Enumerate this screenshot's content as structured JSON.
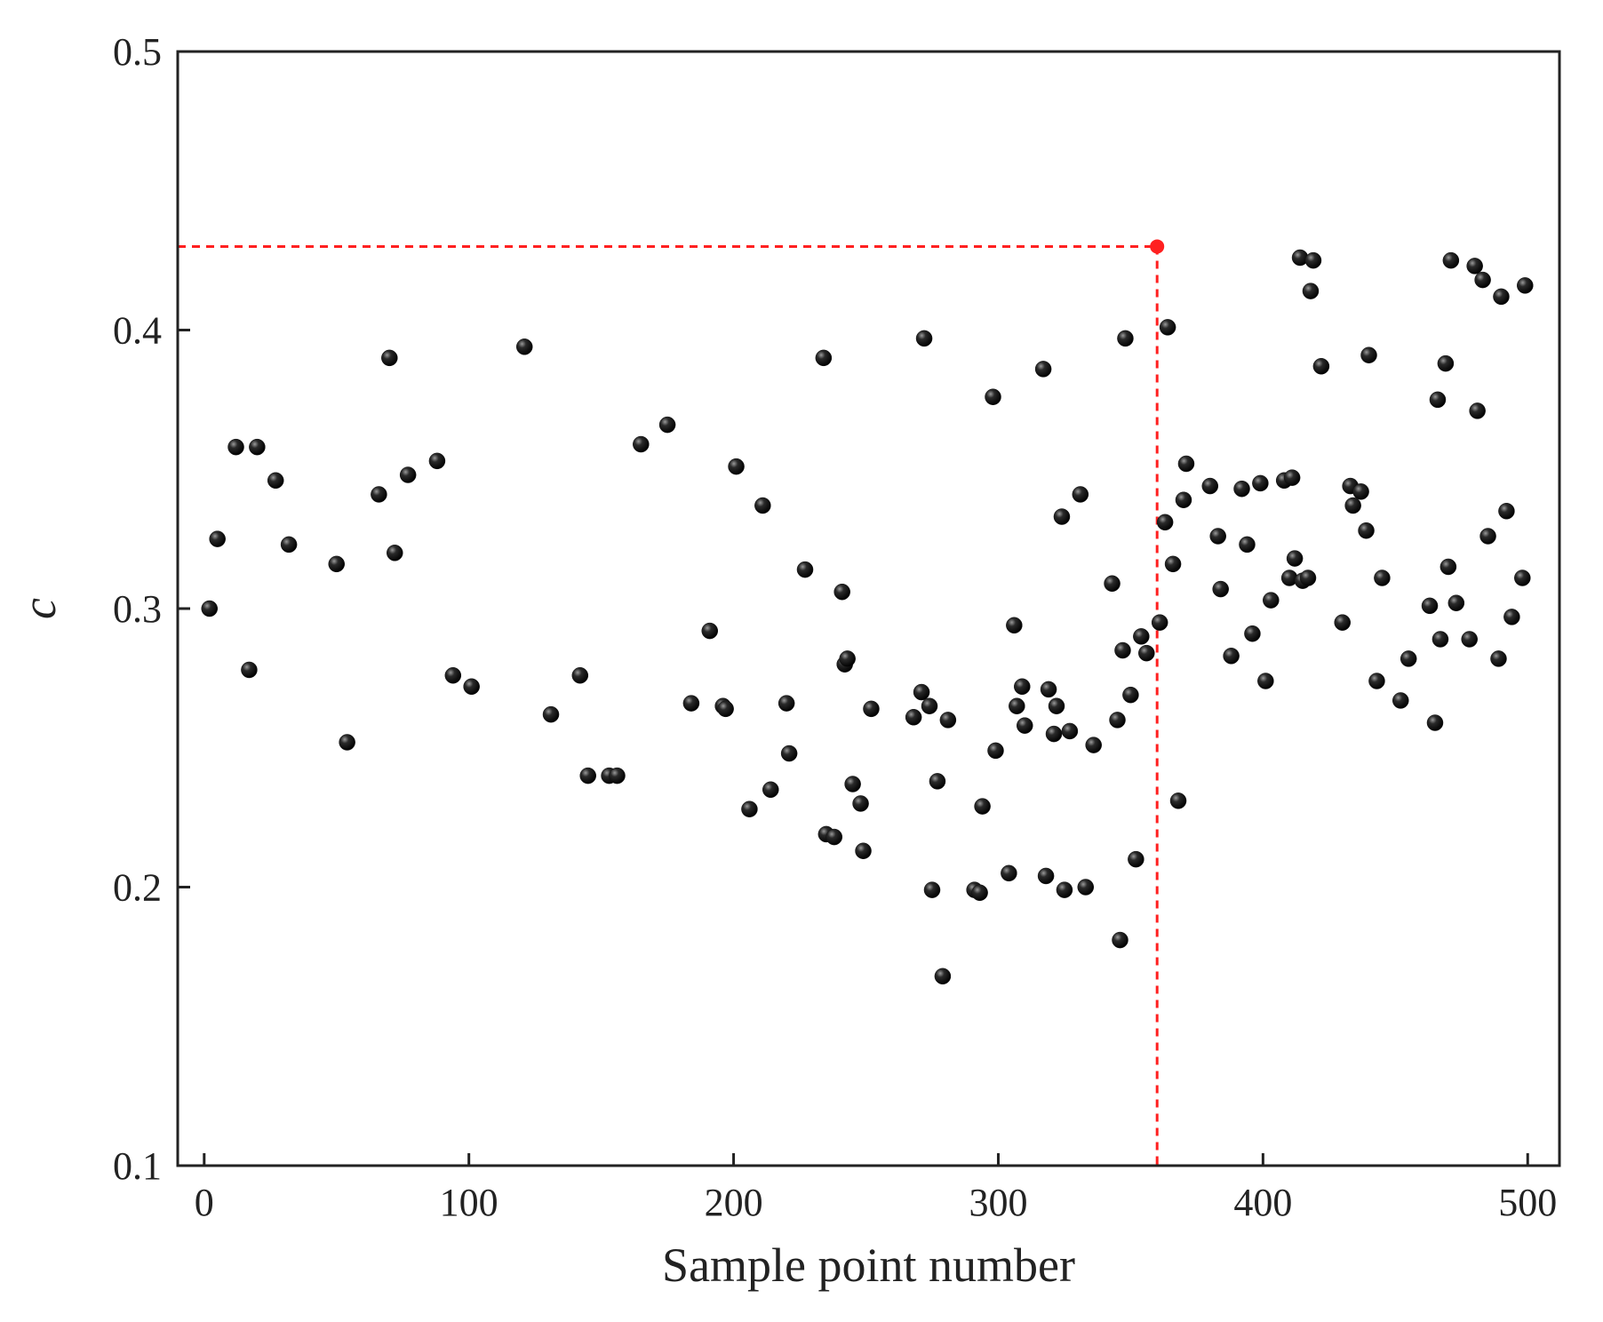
{
  "chart_data": {
    "type": "scatter",
    "title": "",
    "xlabel": "Sample point number",
    "ylabel": "c",
    "xlim": [
      -10,
      512
    ],
    "ylim": [
      0.1,
      0.5
    ],
    "xticks": [
      0,
      100,
      200,
      300,
      400,
      500
    ],
    "yticks": [
      0.1,
      0.2,
      0.3,
      0.4,
      0.5
    ],
    "xtick_labels": [
      "0",
      "100",
      "200",
      "300",
      "400",
      "500"
    ],
    "ytick_labels": [
      "0.1",
      "0.2",
      "0.3",
      "0.4",
      "0.5"
    ],
    "grid": false,
    "legend": "none",
    "colors": {
      "points": "#111111",
      "highlight": "#ff2020",
      "guide": "#ff2020",
      "axes": "#222222"
    },
    "highlight": {
      "x": 360,
      "y": 0.43
    },
    "series": [
      {
        "marker": "sphere",
        "points": [
          [
            2,
            0.3
          ],
          [
            5,
            0.325
          ],
          [
            12,
            0.358
          ],
          [
            17,
            0.278
          ],
          [
            20,
            0.358
          ],
          [
            27,
            0.346
          ],
          [
            32,
            0.323
          ],
          [
            50,
            0.316
          ],
          [
            54,
            0.252
          ],
          [
            66,
            0.341
          ],
          [
            70,
            0.39
          ],
          [
            72,
            0.32
          ],
          [
            77,
            0.348
          ],
          [
            88,
            0.353
          ],
          [
            94,
            0.276
          ],
          [
            101,
            0.272
          ],
          [
            121,
            0.394
          ],
          [
            131,
            0.262
          ],
          [
            142,
            0.276
          ],
          [
            145,
            0.24
          ],
          [
            153,
            0.24
          ],
          [
            156,
            0.24
          ],
          [
            165,
            0.359
          ],
          [
            175,
            0.366
          ],
          [
            184,
            0.266
          ],
          [
            191,
            0.292
          ],
          [
            196,
            0.265
          ],
          [
            197,
            0.264
          ],
          [
            201,
            0.351
          ],
          [
            206,
            0.228
          ],
          [
            211,
            0.337
          ],
          [
            214,
            0.235
          ],
          [
            220,
            0.266
          ],
          [
            221,
            0.248
          ],
          [
            227,
            0.314
          ],
          [
            234,
            0.39
          ],
          [
            235,
            0.219
          ],
          [
            238,
            0.218
          ],
          [
            241,
            0.306
          ],
          [
            242,
            0.28
          ],
          [
            243,
            0.282
          ],
          [
            245,
            0.237
          ],
          [
            248,
            0.23
          ],
          [
            249,
            0.213
          ],
          [
            252,
            0.264
          ],
          [
            268,
            0.261
          ],
          [
            271,
            0.27
          ],
          [
            272,
            0.397
          ],
          [
            274,
            0.265
          ],
          [
            275,
            0.199
          ],
          [
            277,
            0.238
          ],
          [
            279,
            0.168
          ],
          [
            281,
            0.26
          ],
          [
            291,
            0.199
          ],
          [
            293,
            0.198
          ],
          [
            294,
            0.229
          ],
          [
            298,
            0.376
          ],
          [
            299,
            0.249
          ],
          [
            304,
            0.205
          ],
          [
            306,
            0.294
          ],
          [
            307,
            0.265
          ],
          [
            309,
            0.272
          ],
          [
            310,
            0.258
          ],
          [
            317,
            0.386
          ],
          [
            318,
            0.204
          ],
          [
            319,
            0.271
          ],
          [
            321,
            0.255
          ],
          [
            322,
            0.265
          ],
          [
            324,
            0.333
          ],
          [
            325,
            0.199
          ],
          [
            327,
            0.256
          ],
          [
            331,
            0.341
          ],
          [
            333,
            0.2
          ],
          [
            336,
            0.251
          ],
          [
            343,
            0.309
          ],
          [
            345,
            0.26
          ],
          [
            346,
            0.181
          ],
          [
            347,
            0.285
          ],
          [
            348,
            0.397
          ],
          [
            350,
            0.269
          ],
          [
            352,
            0.21
          ],
          [
            354,
            0.29
          ],
          [
            356,
            0.284
          ],
          [
            361,
            0.295
          ],
          [
            363,
            0.331
          ],
          [
            364,
            0.401
          ],
          [
            366,
            0.316
          ],
          [
            368,
            0.231
          ],
          [
            370,
            0.339
          ],
          [
            371,
            0.352
          ],
          [
            380,
            0.344
          ],
          [
            383,
            0.326
          ],
          [
            384,
            0.307
          ],
          [
            388,
            0.283
          ],
          [
            392,
            0.343
          ],
          [
            394,
            0.323
          ],
          [
            396,
            0.291
          ],
          [
            399,
            0.345
          ],
          [
            401,
            0.274
          ],
          [
            403,
            0.303
          ],
          [
            408,
            0.346
          ],
          [
            410,
            0.311
          ],
          [
            411,
            0.347
          ],
          [
            412,
            0.318
          ],
          [
            414,
            0.426
          ],
          [
            415,
            0.31
          ],
          [
            417,
            0.311
          ],
          [
            418,
            0.414
          ],
          [
            419,
            0.425
          ],
          [
            422,
            0.387
          ],
          [
            430,
            0.295
          ],
          [
            433,
            0.344
          ],
          [
            434,
            0.337
          ],
          [
            437,
            0.342
          ],
          [
            439,
            0.328
          ],
          [
            440,
            0.391
          ],
          [
            443,
            0.274
          ],
          [
            445,
            0.311
          ],
          [
            452,
            0.267
          ],
          [
            455,
            0.282
          ],
          [
            463,
            0.301
          ],
          [
            465,
            0.259
          ],
          [
            466,
            0.375
          ],
          [
            467,
            0.289
          ],
          [
            469,
            0.388
          ],
          [
            470,
            0.315
          ],
          [
            471,
            0.425
          ],
          [
            473,
            0.302
          ],
          [
            478,
            0.289
          ],
          [
            480,
            0.423
          ],
          [
            481,
            0.371
          ],
          [
            483,
            0.418
          ],
          [
            485,
            0.326
          ],
          [
            489,
            0.282
          ],
          [
            490,
            0.412
          ],
          [
            492,
            0.335
          ],
          [
            494,
            0.297
          ],
          [
            498,
            0.311
          ],
          [
            499,
            0.416
          ]
        ]
      }
    ]
  }
}
